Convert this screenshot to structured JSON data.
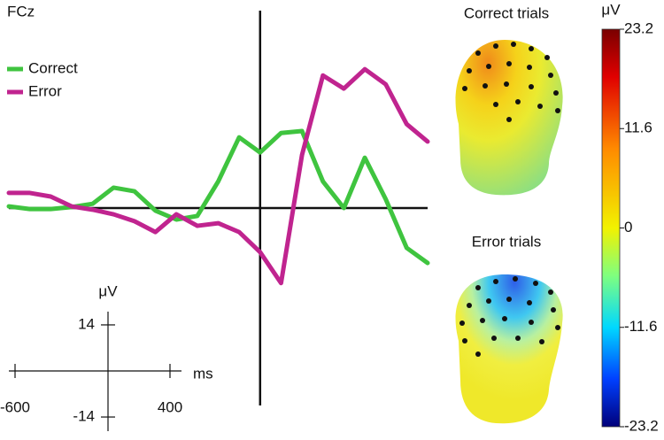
{
  "chart_data": {
    "type": "line",
    "title": "FCz",
    "xlim": [
      -600,
      400
    ],
    "ylim": [
      -60,
      60
    ],
    "x": [
      -600,
      -550,
      -500,
      -450,
      -400,
      -350,
      -300,
      -250,
      -200,
      -150,
      -100,
      -50,
      0,
      50,
      100,
      150,
      200,
      250,
      300,
      350,
      400
    ],
    "series": [
      {
        "name": "Correct",
        "color": "#3fc43f",
        "values": [
          0.5,
          -0.3,
          -0.3,
          0.3,
          1.3,
          6.2,
          5.1,
          -0.8,
          -3.5,
          -2.4,
          8.1,
          21.5,
          16.9,
          22.8,
          23.4,
          8.1,
          0,
          15.3,
          2.7,
          -12.1,
          -16.7
        ]
      },
      {
        "name": "Error",
        "color": "#c0248f",
        "values": [
          4.6,
          4.6,
          3.5,
          0.5,
          -0.5,
          -1.9,
          -4.0,
          -7.3,
          -1.9,
          -5.4,
          -4.6,
          -7.3,
          -13.4,
          -22.8,
          16.1,
          40.3,
          36.3,
          42.2,
          37.6,
          25.5,
          20.2
        ]
      }
    ],
    "legend": "upper left",
    "scale_bar": {
      "x_label": "ms",
      "y_label": "μV",
      "xticks": [
        -600,
        400
      ],
      "yticks": [
        14,
        -14
      ]
    },
    "topographies": [
      {
        "title": "Correct trials"
      },
      {
        "title": "Error trials"
      }
    ],
    "colorbar": {
      "label": "μV",
      "lim": [
        -23.2,
        23.2
      ],
      "ticks": [
        23.2,
        11.6,
        0,
        -11.6,
        -23.2
      ]
    }
  }
}
